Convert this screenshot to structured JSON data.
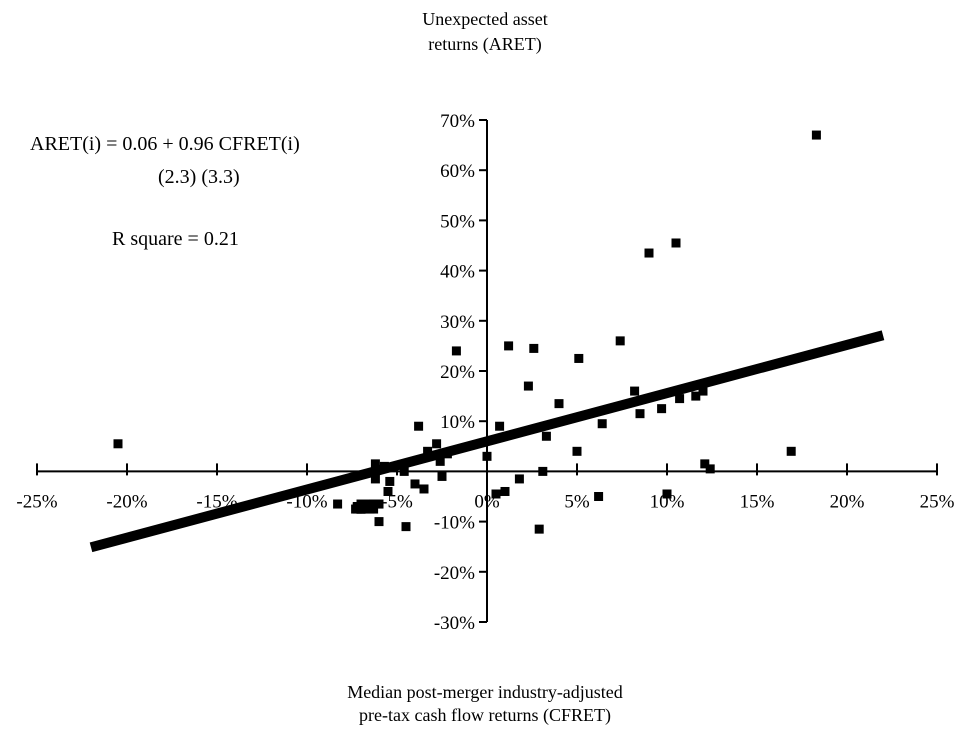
{
  "chart_data": {
    "type": "scatter",
    "title": "",
    "ylabel": [
      "Unexpected asset",
      "returns (ARET)"
    ],
    "xlabel": [
      "Median post-merger industry-adjusted",
      "pre-tax cash flow returns (CFRET)"
    ],
    "xlim": [
      -0.25,
      0.25
    ],
    "ylim": [
      -0.3,
      0.7
    ],
    "x_ticks": [
      -0.25,
      -0.2,
      -0.15,
      -0.1,
      -0.05,
      0.0,
      0.05,
      0.1,
      0.15,
      0.2,
      0.25
    ],
    "x_tick_labels": [
      "-25%",
      "-20%",
      "-15%",
      "-10%",
      "-5%",
      "0%",
      "5%",
      "10%",
      "15%",
      "20%",
      "25%"
    ],
    "y_ticks": [
      -0.3,
      -0.2,
      -0.1,
      0.1,
      0.2,
      0.3,
      0.4,
      0.5,
      0.6,
      0.7
    ],
    "y_tick_labels": [
      "-30%",
      "-20%",
      "-10%",
      "10%",
      "20%",
      "30%",
      "40%",
      "50%",
      "60%",
      "70%"
    ],
    "grid": false,
    "annotations": {
      "equation": "ARET(i) = 0.06 + 0.96 CFRET(i)",
      "tstats": "(2.3)   (3.3)",
      "rsquare": "R square = 0.21"
    },
    "regression_line": {
      "intercept": 0.06,
      "slope": 0.96,
      "x_range": [
        -0.22,
        0.22
      ]
    },
    "points": [
      {
        "x": -0.205,
        "y": 0.055
      },
      {
        "x": -0.083,
        "y": -0.065
      },
      {
        "x": -0.07,
        "y": -0.075
      },
      {
        "x": -0.07,
        "y": -0.075
      },
      {
        "x": -0.072,
        "y": -0.075
      },
      {
        "x": -0.07,
        "y": -0.075
      },
      {
        "x": -0.065,
        "y": -0.075
      },
      {
        "x": -0.072,
        "y": -0.07
      },
      {
        "x": -0.07,
        "y": -0.065
      },
      {
        "x": -0.07,
        "y": -0.075
      },
      {
        "x": -0.072,
        "y": -0.07
      },
      {
        "x": -0.07,
        "y": -0.075
      },
      {
        "x": -0.065,
        "y": -0.065
      },
      {
        "x": -0.06,
        "y": -0.065
      },
      {
        "x": -0.062,
        "y": 0.015
      },
      {
        "x": -0.07,
        "y": -0.075
      },
      {
        "x": -0.072,
        "y": -0.07
      },
      {
        "x": -0.062,
        "y": -0.015
      },
      {
        "x": -0.06,
        "y": -0.1
      },
      {
        "x": -0.073,
        "y": -0.075
      },
      {
        "x": -0.07,
        "y": -0.075
      },
      {
        "x": -0.063,
        "y": -0.075
      },
      {
        "x": -0.072,
        "y": -0.072
      },
      {
        "x": -0.068,
        "y": -0.075
      },
      {
        "x": -0.057,
        "y": 0.01
      },
      {
        "x": -0.063,
        "y": -0.065
      },
      {
        "x": -0.062,
        "y": -0.065
      },
      {
        "x": -0.06,
        "y": -0.065
      },
      {
        "x": -0.055,
        "y": -0.04
      },
      {
        "x": -0.054,
        "y": -0.02
      },
      {
        "x": -0.046,
        "y": 0.0
      },
      {
        "x": -0.045,
        "y": -0.11
      },
      {
        "x": -0.04,
        "y": -0.025
      },
      {
        "x": -0.035,
        "y": -0.035
      },
      {
        "x": -0.033,
        "y": 0.04
      },
      {
        "x": -0.028,
        "y": 0.055
      },
      {
        "x": -0.026,
        "y": 0.02
      },
      {
        "x": -0.025,
        "y": -0.01
      },
      {
        "x": -0.022,
        "y": 0.035
      },
      {
        "x": -0.017,
        "y": 0.24
      },
      {
        "x": -0.038,
        "y": 0.09
      },
      {
        "x": 0.0,
        "y": 0.03
      },
      {
        "x": 0.005,
        "y": -0.045
      },
      {
        "x": 0.007,
        "y": 0.09
      },
      {
        "x": 0.01,
        "y": -0.04
      },
      {
        "x": 0.012,
        "y": 0.25
      },
      {
        "x": 0.018,
        "y": -0.015
      },
      {
        "x": 0.023,
        "y": 0.17
      },
      {
        "x": 0.026,
        "y": 0.245
      },
      {
        "x": 0.029,
        "y": -0.115
      },
      {
        "x": 0.031,
        "y": 0.0
      },
      {
        "x": 0.033,
        "y": 0.07
      },
      {
        "x": 0.04,
        "y": 0.135
      },
      {
        "x": 0.05,
        "y": 0.04
      },
      {
        "x": 0.051,
        "y": 0.225
      },
      {
        "x": 0.062,
        "y": -0.05
      },
      {
        "x": 0.064,
        "y": 0.095
      },
      {
        "x": 0.074,
        "y": 0.26
      },
      {
        "x": 0.082,
        "y": 0.16
      },
      {
        "x": 0.085,
        "y": 0.115
      },
      {
        "x": 0.09,
        "y": 0.435
      },
      {
        "x": 0.097,
        "y": 0.125
      },
      {
        "x": 0.1,
        "y": -0.045
      },
      {
        "x": 0.105,
        "y": 0.455
      },
      {
        "x": 0.107,
        "y": 0.145
      },
      {
        "x": 0.116,
        "y": 0.15
      },
      {
        "x": 0.12,
        "y": 0.16
      },
      {
        "x": 0.121,
        "y": 0.015
      },
      {
        "x": 0.124,
        "y": 0.005
      },
      {
        "x": 0.169,
        "y": 0.04
      },
      {
        "x": 0.183,
        "y": 0.67
      }
    ]
  }
}
